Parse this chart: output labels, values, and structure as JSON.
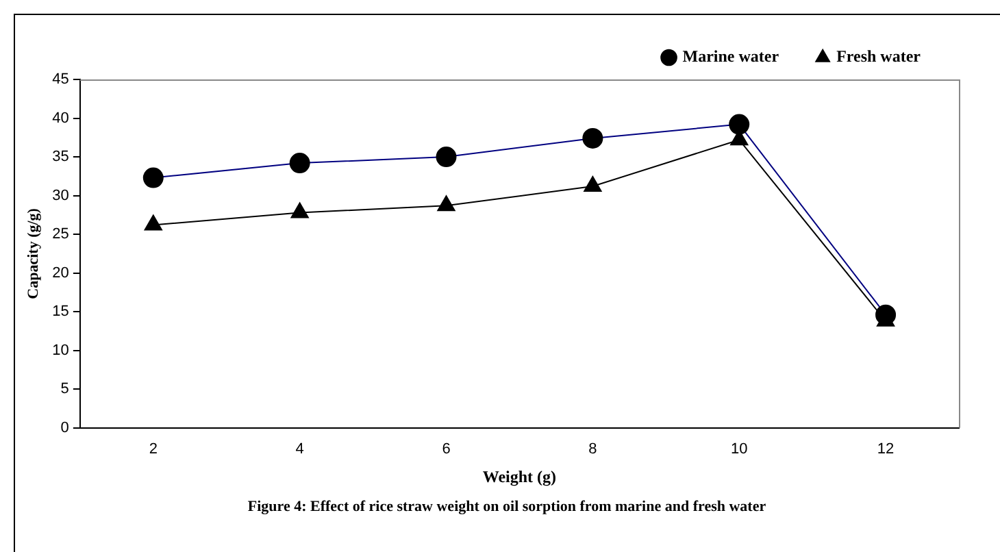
{
  "chart_data": {
    "type": "line",
    "xlabel": "Weight (g)",
    "ylabel": "Capacity (g/g)",
    "categories": [
      "2",
      "4",
      "6",
      "8",
      "10",
      "12"
    ],
    "series": [
      {
        "name": "Marine water",
        "color": "#000080",
        "marker": "circle",
        "values": [
          32.3,
          34.2,
          35,
          37.4,
          39.2,
          14.6
        ]
      },
      {
        "name": "Fresh water",
        "color": "#000000",
        "marker": "triangle",
        "values": [
          26.2,
          27.8,
          28.7,
          31.2,
          37.2,
          13.8
        ]
      }
    ],
    "ylim": [
      0,
      45
    ],
    "yticks": [
      0,
      5,
      10,
      15,
      20,
      25,
      30,
      35,
      40,
      45
    ],
    "grid": false,
    "legend": "top right",
    "annotations": [
      "Figure 4: Effect of rice straw weight on oil sorption from marine and fresh water"
    ]
  }
}
